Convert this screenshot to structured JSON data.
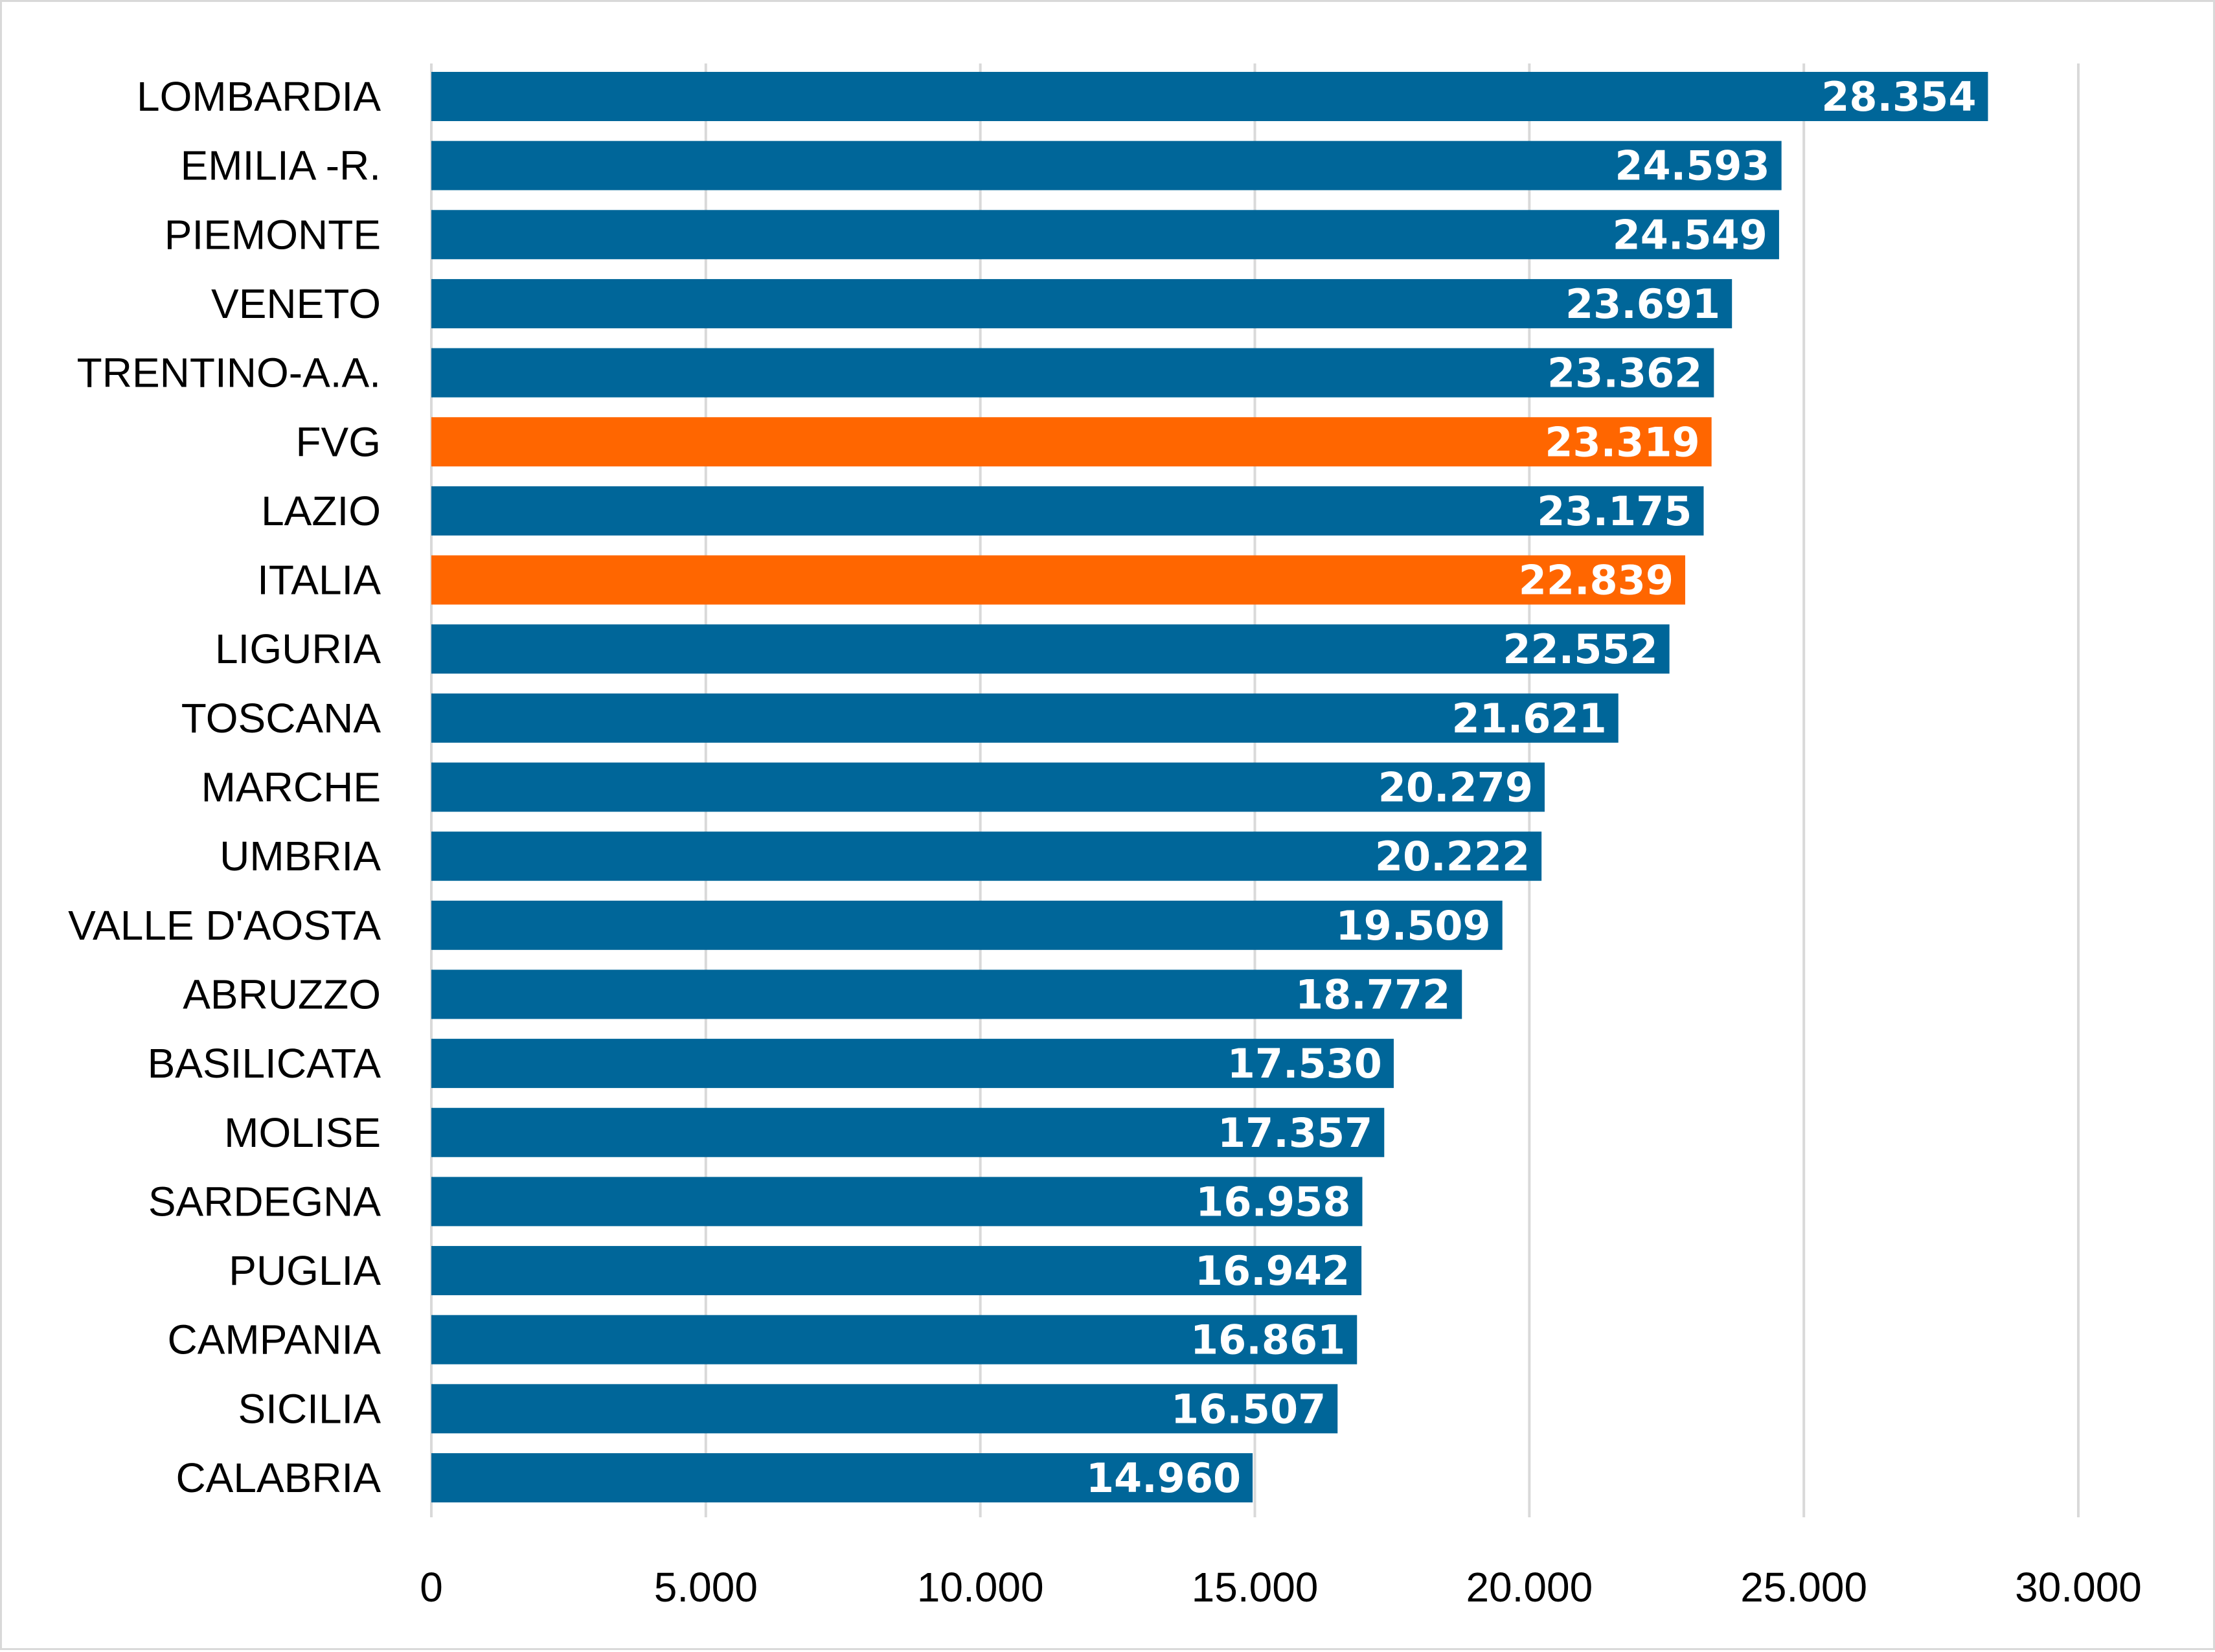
{
  "chart_data": {
    "type": "bar",
    "orientation": "horizontal",
    "categories": [
      "LOMBARDIA",
      "EMILIA -R.",
      "PIEMONTE",
      "VENETO",
      "TRENTINO-A.A.",
      "FVG",
      "LAZIO",
      "ITALIA",
      "LIGURIA",
      "TOSCANA",
      "MARCHE",
      "UMBRIA",
      "VALLE D'AOSTA",
      "ABRUZZO",
      "BASILICATA",
      "MOLISE",
      "SARDEGNA",
      "PUGLIA",
      "CAMPANIA",
      "SICILIA",
      "CALABRIA"
    ],
    "values": [
      28354,
      24593,
      24549,
      23691,
      23362,
      23319,
      23175,
      22839,
      22552,
      21621,
      20279,
      20222,
      19509,
      18772,
      17530,
      17357,
      16958,
      16942,
      16861,
      16507,
      14960
    ],
    "value_labels": [
      "28.354",
      "24.593",
      "24.549",
      "23.691",
      "23.362",
      "23.319",
      "23.175",
      "22.839",
      "22.552",
      "21.621",
      "20.279",
      "20.222",
      "19.509",
      "18.772",
      "17.530",
      "17.357",
      "16.958",
      "16.942",
      "16.861",
      "16.507",
      "14.960"
    ],
    "highlighted": [
      "FVG",
      "ITALIA"
    ],
    "xlim": [
      0,
      30000
    ],
    "x_ticks": [
      0,
      5000,
      10000,
      15000,
      20000,
      25000,
      30000
    ],
    "x_tick_labels": [
      "0",
      "5.000",
      "10.000",
      "15.000",
      "20.000",
      "25.000",
      "30.000"
    ],
    "grid": "vertical",
    "legend": "none",
    "colors": {
      "bar": "#006699",
      "highlight": "#ff6600",
      "grid": "#d9d9d9",
      "label": "#ffffff"
    }
  }
}
